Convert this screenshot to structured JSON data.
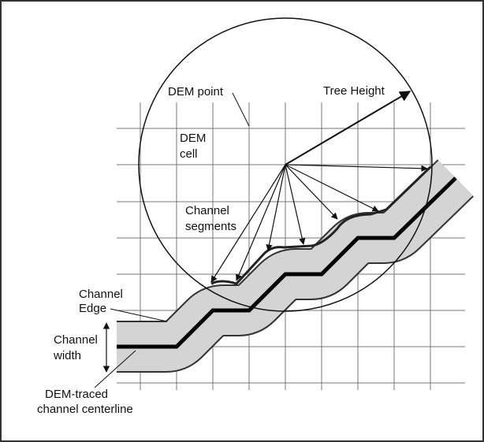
{
  "labels": {
    "dem_point": "DEM point",
    "tree_height": "Tree Height",
    "dem_cell": [
      "DEM",
      "cell"
    ],
    "channel_segments": [
      "Channel",
      "segments"
    ],
    "channel_edge": [
      "Channel",
      "Edge"
    ],
    "channel_width": [
      "Channel",
      "width"
    ],
    "centerline": [
      "DEM-traced",
      "channel centerline"
    ]
  }
}
